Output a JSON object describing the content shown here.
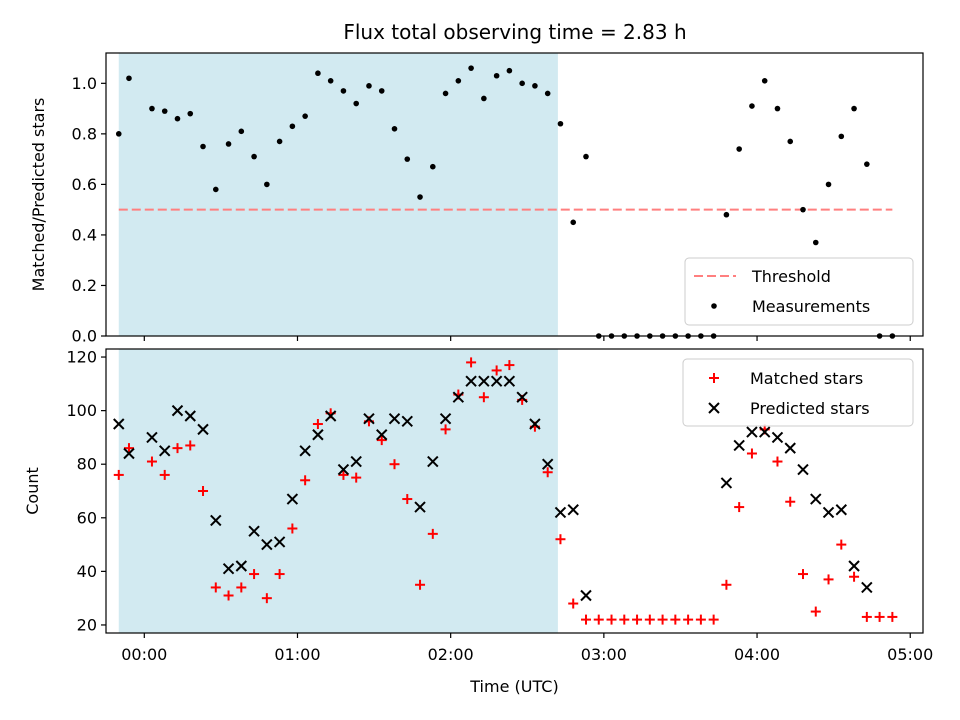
{
  "figure": {
    "title": "Flux total observing time = 2.83 h"
  },
  "chart_data": [
    {
      "type": "scatter",
      "ylabel": "Matched/Predicted stars",
      "xlabel": "",
      "xlim": [
        "23:45",
        "05:05"
      ],
      "ylim": [
        0,
        1.12
      ],
      "y_ticks": [
        "0.0",
        "0.2",
        "0.4",
        "0.6",
        "0.8",
        "1.0"
      ],
      "shaded_interval": {
        "from": "23:50",
        "to": "02:42",
        "color": "#add8e6"
      },
      "threshold": {
        "name": "Threshold",
        "value": 0.5,
        "from": "23:50",
        "to": "04:53",
        "color": "#ff7f7f",
        "style": "dashed"
      },
      "series": [
        {
          "name": "Measurements",
          "marker": "dot",
          "color": "#000000",
          "x": [
            "23:50",
            "23:54",
            "00:03",
            "00:08",
            "00:13",
            "00:18",
            "00:23",
            "00:28",
            "00:33",
            "00:38",
            "00:43",
            "00:48",
            "00:53",
            "00:58",
            "01:03",
            "01:08",
            "01:13",
            "01:18",
            "01:23",
            "01:28",
            "01:33",
            "01:38",
            "01:43",
            "01:48",
            "01:53",
            "01:58",
            "02:03",
            "02:08",
            "02:13",
            "02:18",
            "02:23",
            "02:28",
            "02:33",
            "02:38",
            "02:43",
            "02:48",
            "02:53",
            "02:58",
            "03:03",
            "03:08",
            "03:13",
            "03:18",
            "03:23",
            "03:28",
            "03:33",
            "03:38",
            "03:43",
            "03:48",
            "03:53",
            "03:58",
            "04:03",
            "04:08",
            "04:13",
            "04:18",
            "04:23",
            "04:28",
            "04:33",
            "04:38",
            "04:43",
            "04:48",
            "04:53"
          ],
          "y": [
            0.8,
            1.02,
            0.9,
            0.89,
            0.86,
            0.88,
            0.75,
            0.58,
            0.76,
            0.81,
            0.71,
            0.6,
            0.77,
            0.83,
            0.87,
            1.04,
            1.01,
            0.97,
            0.92,
            0.99,
            0.97,
            0.82,
            0.7,
            0.55,
            0.67,
            0.96,
            1.01,
            1.06,
            0.94,
            1.03,
            1.05,
            1.0,
            0.99,
            0.96,
            0.84,
            0.45,
            0.71,
            0.0,
            0.0,
            0.0,
            0.0,
            0.0,
            0.0,
            0.0,
            0.0,
            0.0,
            0.0,
            0.48,
            0.74,
            0.91,
            1.01,
            0.9,
            0.77,
            0.5,
            0.37,
            0.6,
            0.79,
            0.9,
            0.68,
            0.0,
            0.0
          ]
        }
      ],
      "legend": {
        "placement": "lower-right",
        "entries": [
          "Threshold",
          "Measurements"
        ]
      }
    },
    {
      "type": "scatter",
      "ylabel": "Count",
      "xlabel": "Time (UTC)",
      "xlim": [
        "23:45",
        "05:05"
      ],
      "ylim": [
        17,
        123
      ],
      "y_ticks": [
        "20",
        "40",
        "60",
        "80",
        "100",
        "120"
      ],
      "x_ticks": [
        "00:00",
        "01:00",
        "02:00",
        "03:00",
        "04:00",
        "05:00"
      ],
      "shaded_interval": {
        "from": "23:50",
        "to": "02:42",
        "color": "#add8e6"
      },
      "series": [
        {
          "name": "Matched stars",
          "marker": "plus",
          "color": "#ff0000",
          "x": [
            "23:50",
            "23:54",
            "00:03",
            "00:08",
            "00:13",
            "00:18",
            "00:23",
            "00:28",
            "00:33",
            "00:38",
            "00:43",
            "00:48",
            "00:53",
            "00:58",
            "01:03",
            "01:08",
            "01:13",
            "01:18",
            "01:23",
            "01:28",
            "01:33",
            "01:38",
            "01:43",
            "01:48",
            "01:53",
            "01:58",
            "02:03",
            "02:08",
            "02:13",
            "02:18",
            "02:23",
            "02:28",
            "02:33",
            "02:38",
            "02:43",
            "02:48",
            "02:53",
            "02:58",
            "03:03",
            "03:08",
            "03:13",
            "03:18",
            "03:23",
            "03:28",
            "03:33",
            "03:38",
            "03:43",
            "03:48",
            "03:53",
            "03:58",
            "04:03",
            "04:08",
            "04:13",
            "04:18",
            "04:23",
            "04:28",
            "04:33",
            "04:38",
            "04:43",
            "04:48",
            "04:53"
          ],
          "y": [
            76,
            86,
            81,
            76,
            86,
            87,
            70,
            34,
            31,
            34,
            39,
            30,
            39,
            56,
            74,
            95,
            99,
            76,
            75,
            96,
            89,
            80,
            67,
            35,
            54,
            93,
            106,
            118,
            105,
            115,
            117,
            104,
            94,
            77,
            52,
            28,
            22,
            22,
            22,
            22,
            22,
            22,
            22,
            22,
            22,
            22,
            22,
            35,
            64,
            84,
            93,
            81,
            66,
            39,
            25,
            37,
            50,
            38,
            23,
            23,
            23
          ]
        },
        {
          "name": "Predicted stars",
          "marker": "x",
          "color": "#000000",
          "x": [
            "23:50",
            "23:54",
            "00:03",
            "00:08",
            "00:13",
            "00:18",
            "00:23",
            "00:28",
            "00:33",
            "00:38",
            "00:43",
            "00:48",
            "00:53",
            "00:58",
            "01:03",
            "01:08",
            "01:13",
            "01:18",
            "01:23",
            "01:28",
            "01:33",
            "01:38",
            "01:43",
            "01:48",
            "01:53",
            "01:58",
            "02:03",
            "02:08",
            "02:13",
            "02:18",
            "02:23",
            "02:28",
            "02:33",
            "02:38",
            "02:43",
            "02:48",
            "02:53",
            "03:48",
            "03:53",
            "03:58",
            "04:03",
            "04:08",
            "04:13",
            "04:18",
            "04:23",
            "04:28",
            "04:33",
            "04:38",
            "04:43"
          ],
          "y": [
            95,
            84,
            90,
            85,
            100,
            98,
            93,
            59,
            41,
            42,
            55,
            50,
            51,
            67,
            85,
            91,
            98,
            78,
            81,
            97,
            91,
            97,
            96,
            64,
            81,
            97,
            105,
            111,
            111,
            111,
            111,
            105,
            95,
            80,
            62,
            63,
            31,
            73,
            87,
            92,
            92,
            90,
            86,
            78,
            67,
            62,
            63,
            42,
            34
          ]
        }
      ],
      "legend": {
        "placement": "upper-right",
        "entries": [
          "Matched stars",
          "Predicted stars"
        ]
      }
    }
  ]
}
